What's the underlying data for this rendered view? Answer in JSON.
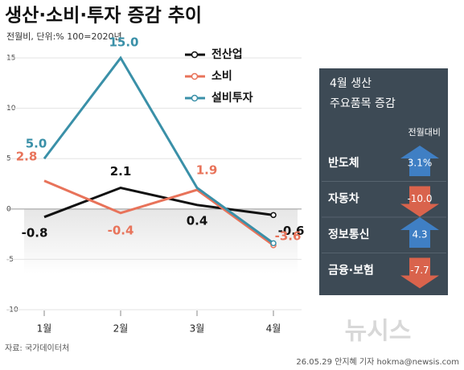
{
  "chart_data": {
    "type": "line",
    "title": "생산·소비·투자 증감 추이",
    "subtitle": "전월비, 단위:% 100=2020년",
    "categories": [
      "1월",
      "2월",
      "3월",
      "4월"
    ],
    "series": [
      {
        "name": "전산업",
        "color": "#111111",
        "values": [
          -0.8,
          2.1,
          0.4,
          -0.6
        ],
        "value_labels": [
          "-0.8",
          "2.1",
          "0.4",
          "-0.6"
        ]
      },
      {
        "name": "소비",
        "color": "#e8735a",
        "values": [
          2.8,
          -0.4,
          1.9,
          -3.6
        ],
        "value_labels": [
          "2.8",
          "-0.4",
          "1.9",
          "-3.6"
        ]
      },
      {
        "name": "설비투자",
        "color": "#3a90a8",
        "values": [
          5,
          15,
          2.1,
          -3.4
        ],
        "value_labels": [
          "5.0",
          "15.0",
          null,
          null
        ]
      }
    ],
    "ylim": [
      -10,
      17
    ],
    "yticks": [
      15,
      10,
      5,
      0,
      -5,
      -10
    ],
    "source": "자료: 국가데이터처",
    "credit": "26.05.29 안지혜 기자 hokma@newsis.com",
    "brand": "뉴시스"
  },
  "panel": {
    "title": "4월 생산",
    "title2": "주요품목 증감",
    "subtitle": "전월대비",
    "items": [
      {
        "name": "반도체",
        "value": 3.1,
        "label": "3.1%"
      },
      {
        "name": "자동차",
        "value": -10,
        "label": "-10.0"
      },
      {
        "name": "정보통신",
        "value": 4.3,
        "label": "4.3"
      },
      {
        "name": "금융·보험",
        "value": -7.7,
        "label": "-7.7"
      }
    ]
  }
}
